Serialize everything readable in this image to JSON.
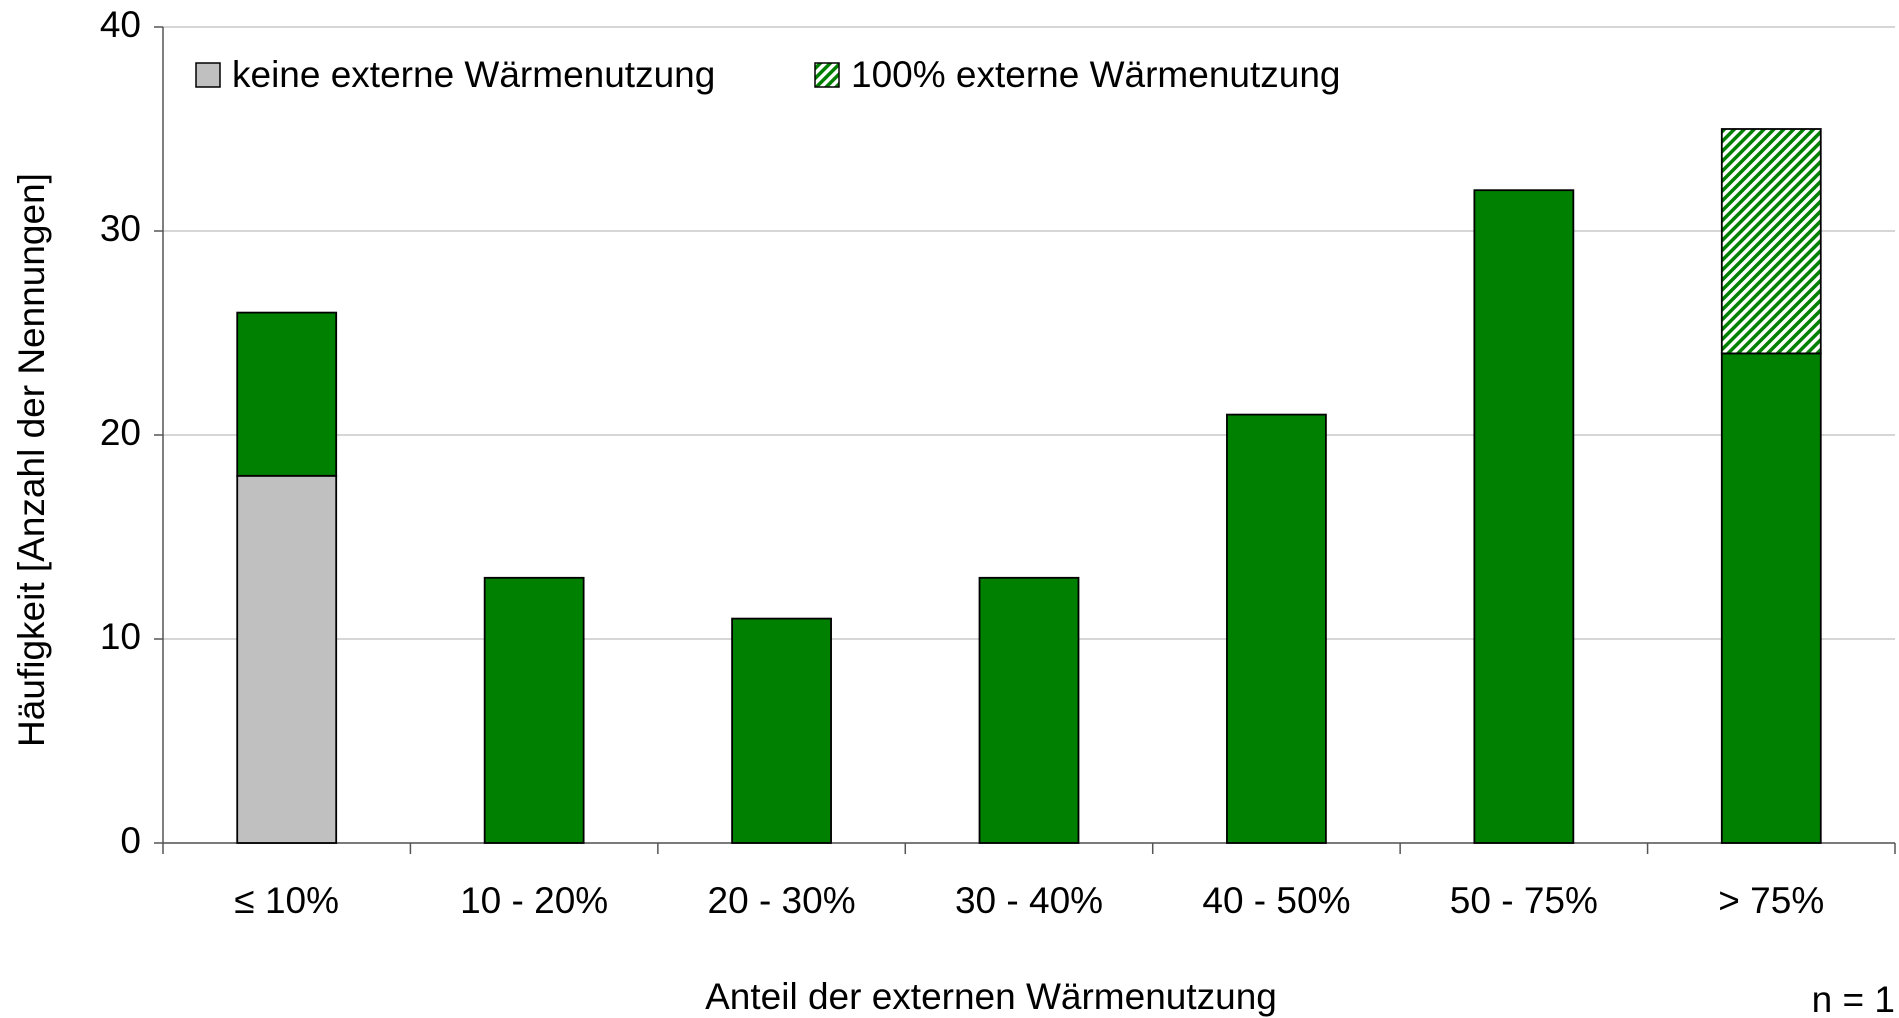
{
  "chart_data": {
    "type": "stacked_bar",
    "x_label": "Anteil der externen Wärmenutzung",
    "y_label": "Häufigkeit [Anzahl der Nennungen]",
    "annotation": "n = 1",
    "categories": [
      "≤ 10%",
      "10 - 20%",
      "20 - 30%",
      "30 - 40%",
      "40 - 50%",
      "50 - 75%",
      "> 75%"
    ],
    "series": [
      {
        "name": "keine externe Wärmenutzung",
        "color": "#c0c0c0",
        "values": [
          18,
          0,
          0,
          0,
          0,
          0,
          0
        ]
      },
      {
        "color": "#008000",
        "values": [
          8,
          13,
          11,
          13,
          21,
          32,
          24
        ]
      },
      {
        "name": "100% externe Wärmenutzung",
        "color": "#008000",
        "hatch": true,
        "values": [
          0,
          0,
          0,
          0,
          0,
          0,
          11
        ]
      }
    ],
    "ylim": [
      0,
      40
    ],
    "yticks": [
      0,
      10,
      20,
      30,
      40
    ],
    "grid": true
  }
}
